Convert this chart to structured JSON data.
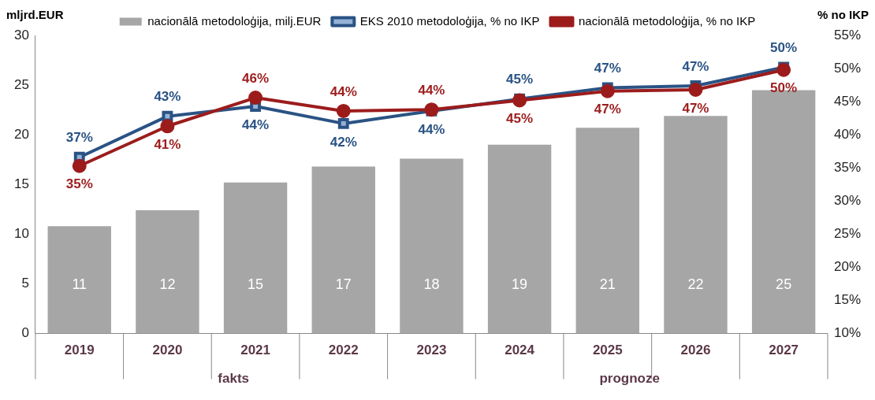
{
  "chart_data": {
    "type": "bar",
    "ylabel": "mljrd.EUR",
    "y2label": "% no IKP",
    "categories": [
      "2019",
      "2020",
      "2021",
      "2022",
      "2023",
      "2024",
      "2025",
      "2026",
      "2027"
    ],
    "series": [
      {
        "name": "nacionālā metodoloģija, milj.EUR",
        "color": "#a6a6a6",
        "values": [
          10.8,
          12.4,
          15.2,
          16.8,
          17.6,
          19.0,
          20.7,
          21.9,
          24.5
        ],
        "value_labels": [
          "11",
          "12",
          "15",
          "17",
          "18",
          "19",
          "21",
          "22",
          "25"
        ]
      },
      {
        "name": "EKS 2010 metodoloģija, % no IKP",
        "type": "line",
        "axis": "y2",
        "color": "#2a5384",
        "marker": "square",
        "values": [
          36.6,
          42.8,
          44.3,
          41.7,
          43.6,
          45.4,
          47.1,
          47.4,
          50.2
        ],
        "value_labels": [
          "37%",
          "43%",
          "44%",
          "42%",
          "44%",
          "45%",
          "47%",
          "47%",
          "50%"
        ]
      },
      {
        "name": "nacionālā metodoloģija, % no IKP",
        "type": "line",
        "axis": "y2",
        "color": "#9c1c1c",
        "marker": "circle",
        "values": [
          35.3,
          41.3,
          45.6,
          43.6,
          43.8,
          45.2,
          46.6,
          46.8,
          49.8
        ],
        "value_labels": [
          "35%",
          "41%",
          "46%",
          "44%",
          "44%",
          "45%",
          "47%",
          "47%",
          "50%"
        ]
      }
    ],
    "ylim": [
      0,
      30
    ],
    "yticks": [
      0,
      5,
      10,
      15,
      20,
      25,
      30
    ],
    "y2lim": [
      10,
      55
    ],
    "y2ticks": [
      {
        "value": 10,
        "label": "10%"
      },
      {
        "value": 15,
        "label": "15%"
      },
      {
        "value": 20,
        "label": "20%"
      },
      {
        "value": 25,
        "label": "25%"
      },
      {
        "value": 30,
        "label": "30%"
      },
      {
        "value": 35,
        "label": "35%"
      },
      {
        "value": 40,
        "label": "40%"
      },
      {
        "value": 45,
        "label": "45%"
      },
      {
        "value": 50,
        "label": "50%"
      },
      {
        "value": 55,
        "label": "55%"
      }
    ],
    "grid": false,
    "legend": "top",
    "line_style": "solid",
    "annotations": [
      "fakts",
      "prognoze"
    ]
  }
}
